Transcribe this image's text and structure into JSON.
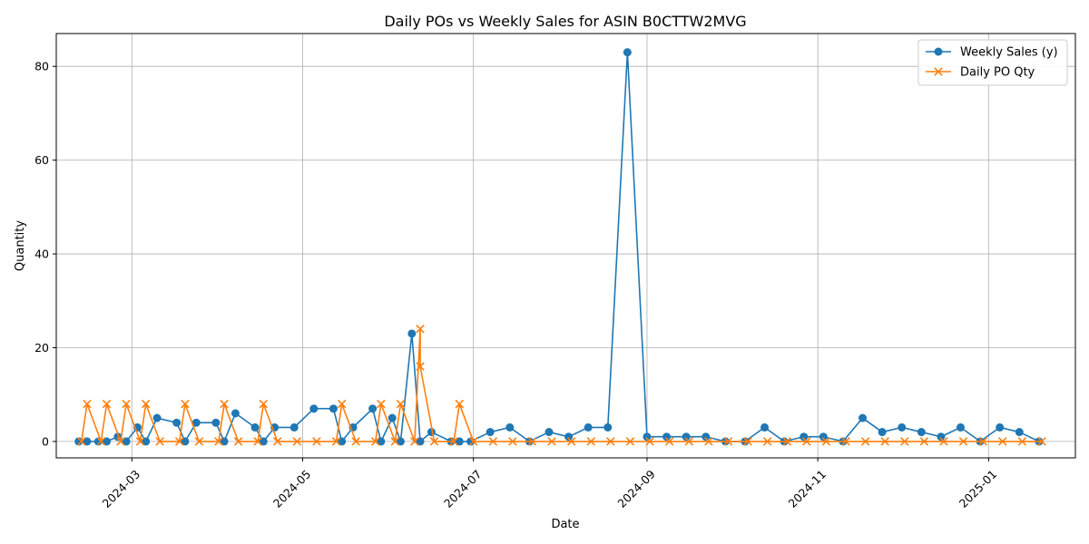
{
  "chart_data": {
    "type": "line",
    "title": "Daily POs vs Weekly Sales for ASIN B0CTTW2MVG",
    "xlabel": "Date",
    "ylabel": "Quantity",
    "xlim": [
      "2024-02-03",
      "2025-02-01"
    ],
    "ylim": [
      -3.5,
      87
    ],
    "x_ticks": [
      "2024-03",
      "2024-05",
      "2024-07",
      "2024-09",
      "2024-11",
      "2025-01"
    ],
    "x_tick_dates": [
      "2024-03-01",
      "2024-05-01",
      "2024-07-01",
      "2024-09-01",
      "2024-11-01",
      "2025-01-01"
    ],
    "y_ticks": [
      0,
      20,
      40,
      60,
      80
    ],
    "grid": true,
    "legend_position": "top-right",
    "series": [
      {
        "name": "Weekly Sales (y)",
        "color": "#1f77b4",
        "marker": "circle",
        "points": [
          [
            "2024-02-11",
            0
          ],
          [
            "2024-02-14",
            0
          ],
          [
            "2024-02-18",
            0
          ],
          [
            "2024-02-21",
            0
          ],
          [
            "2024-02-25",
            1
          ],
          [
            "2024-02-28",
            0
          ],
          [
            "2024-03-03",
            3
          ],
          [
            "2024-03-06",
            0
          ],
          [
            "2024-03-10",
            5
          ],
          [
            "2024-03-17",
            4
          ],
          [
            "2024-03-20",
            0
          ],
          [
            "2024-03-24",
            4
          ],
          [
            "2024-03-31",
            4
          ],
          [
            "2024-04-03",
            0
          ],
          [
            "2024-04-07",
            6
          ],
          [
            "2024-04-14",
            3
          ],
          [
            "2024-04-17",
            0
          ],
          [
            "2024-04-21",
            3
          ],
          [
            "2024-04-28",
            3
          ],
          [
            "2024-05-05",
            7
          ],
          [
            "2024-05-12",
            7
          ],
          [
            "2024-05-15",
            0
          ],
          [
            "2024-05-19",
            3
          ],
          [
            "2024-05-26",
            7
          ],
          [
            "2024-05-29",
            0
          ],
          [
            "2024-06-02",
            5
          ],
          [
            "2024-06-05",
            0
          ],
          [
            "2024-06-09",
            23
          ],
          [
            "2024-06-12",
            0
          ],
          [
            "2024-06-16",
            2
          ],
          [
            "2024-06-23",
            0
          ],
          [
            "2024-06-26",
            0
          ],
          [
            "2024-06-30",
            0
          ],
          [
            "2024-07-07",
            2
          ],
          [
            "2024-07-14",
            3
          ],
          [
            "2024-07-21",
            0
          ],
          [
            "2024-07-28",
            2
          ],
          [
            "2024-08-04",
            1
          ],
          [
            "2024-08-11",
            3
          ],
          [
            "2024-08-18",
            3
          ],
          [
            "2024-08-25",
            83
          ],
          [
            "2024-09-01",
            1
          ],
          [
            "2024-09-08",
            1
          ],
          [
            "2024-09-15",
            1
          ],
          [
            "2024-09-22",
            1
          ],
          [
            "2024-09-29",
            0
          ],
          [
            "2024-10-06",
            0
          ],
          [
            "2024-10-13",
            3
          ],
          [
            "2024-10-20",
            0
          ],
          [
            "2024-10-27",
            1
          ],
          [
            "2024-11-03",
            1
          ],
          [
            "2024-11-10",
            0
          ],
          [
            "2024-11-17",
            5
          ],
          [
            "2024-11-24",
            2
          ],
          [
            "2024-12-01",
            3
          ],
          [
            "2024-12-08",
            2
          ],
          [
            "2024-12-15",
            1
          ],
          [
            "2024-12-22",
            3
          ],
          [
            "2024-12-29",
            0
          ],
          [
            "2025-01-05",
            3
          ],
          [
            "2025-01-12",
            2
          ],
          [
            "2025-01-19",
            0
          ]
        ]
      },
      {
        "name": "Daily PO Qty",
        "color": "#ff7f0e",
        "marker": "x",
        "points": [
          [
            "2024-02-12",
            0
          ],
          [
            "2024-02-14",
            8
          ],
          [
            "2024-02-19",
            0
          ],
          [
            "2024-02-21",
            8
          ],
          [
            "2024-02-26",
            0
          ],
          [
            "2024-02-28",
            8
          ],
          [
            "2024-03-04",
            0
          ],
          [
            "2024-03-06",
            8
          ],
          [
            "2024-03-11",
            0
          ],
          [
            "2024-03-18",
            0
          ],
          [
            "2024-03-20",
            8
          ],
          [
            "2024-03-25",
            0
          ],
          [
            "2024-04-01",
            0
          ],
          [
            "2024-04-03",
            8
          ],
          [
            "2024-04-08",
            0
          ],
          [
            "2024-04-15",
            0
          ],
          [
            "2024-04-17",
            8
          ],
          [
            "2024-04-22",
            0
          ],
          [
            "2024-04-29",
            0
          ],
          [
            "2024-05-06",
            0
          ],
          [
            "2024-05-13",
            0
          ],
          [
            "2024-05-15",
            8
          ],
          [
            "2024-05-20",
            0
          ],
          [
            "2024-05-27",
            0
          ],
          [
            "2024-05-29",
            8
          ],
          [
            "2024-06-03",
            0
          ],
          [
            "2024-06-05",
            8
          ],
          [
            "2024-06-10",
            0
          ],
          [
            "2024-06-12",
            24
          ],
          [
            "2024-06-12",
            16
          ],
          [
            "2024-06-17",
            0
          ],
          [
            "2024-06-24",
            0
          ],
          [
            "2024-06-26",
            8
          ],
          [
            "2024-07-01",
            0
          ],
          [
            "2024-07-08",
            0
          ],
          [
            "2024-07-15",
            0
          ],
          [
            "2024-07-22",
            0
          ],
          [
            "2024-07-29",
            0
          ],
          [
            "2024-08-05",
            0
          ],
          [
            "2024-08-12",
            0
          ],
          [
            "2024-08-19",
            0
          ],
          [
            "2024-08-26",
            0
          ],
          [
            "2024-09-02",
            0
          ],
          [
            "2024-09-09",
            0
          ],
          [
            "2024-09-16",
            0
          ],
          [
            "2024-09-23",
            0
          ],
          [
            "2024-09-30",
            0
          ],
          [
            "2024-10-07",
            0
          ],
          [
            "2024-10-14",
            0
          ],
          [
            "2024-10-21",
            0
          ],
          [
            "2024-10-28",
            0
          ],
          [
            "2024-11-04",
            0
          ],
          [
            "2024-11-11",
            0
          ],
          [
            "2024-11-18",
            0
          ],
          [
            "2024-11-25",
            0
          ],
          [
            "2024-12-02",
            0
          ],
          [
            "2024-12-09",
            0
          ],
          [
            "2024-12-16",
            0
          ],
          [
            "2024-12-23",
            0
          ],
          [
            "2024-12-30",
            0
          ],
          [
            "2025-01-06",
            0
          ],
          [
            "2025-01-13",
            0
          ],
          [
            "2025-01-20",
            0
          ]
        ]
      }
    ]
  }
}
